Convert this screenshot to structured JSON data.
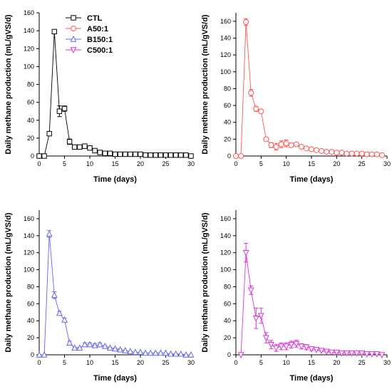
{
  "chart_data": [
    {
      "type": "line",
      "xlabel": "Time (days)",
      "ylabel": "Daily methane production (mL/gVS/d)",
      "xlim": [
        0,
        30
      ],
      "ylim": [
        0,
        160
      ],
      "xticks": [
        0,
        5,
        10,
        15,
        20,
        25,
        30
      ],
      "yticks": [
        0,
        20,
        40,
        60,
        80,
        100,
        120,
        140,
        160
      ],
      "grid": false,
      "legend": "top-left",
      "series": [
        {
          "name": "CTL",
          "color": "#000000",
          "marker": "square",
          "x": [
            0,
            1,
            2,
            3,
            4,
            5,
            6,
            7,
            8,
            9,
            10,
            11,
            12,
            13,
            14,
            15,
            16,
            17,
            18,
            19,
            20,
            21,
            22,
            23,
            24,
            25,
            26,
            27,
            28,
            29,
            30
          ],
          "y": [
            0,
            0,
            25,
            139,
            50,
            53,
            16,
            10,
            10,
            11,
            9,
            6,
            4,
            3,
            3,
            2,
            2,
            2,
            2,
            2,
            2,
            1,
            1,
            1,
            1,
            1,
            1,
            1,
            1,
            1,
            0
          ],
          "err": [
            0,
            0,
            2,
            2,
            6,
            3,
            3,
            1,
            1,
            2,
            1,
            1,
            1,
            1,
            1,
            1,
            0,
            0,
            0,
            0,
            0,
            0,
            0,
            0,
            0,
            0,
            0,
            0,
            0,
            0,
            0
          ]
        }
      ]
    },
    {
      "type": "line",
      "xlabel": "Time (days)",
      "ylabel": "Daily methane production (mL/gVS/d)",
      "xlim": [
        0,
        30
      ],
      "ylim": [
        0,
        170
      ],
      "xticks": [
        0,
        5,
        10,
        15,
        20,
        25,
        30
      ],
      "yticks": [
        0,
        20,
        40,
        60,
        80,
        100,
        120,
        140,
        160
      ],
      "grid": false,
      "legend": "top-left",
      "series": [
        {
          "name": "A50:1",
          "color": "#ff5555",
          "marker": "circle",
          "x": [
            0,
            1,
            2,
            3,
            4,
            5,
            6,
            7,
            8,
            9,
            10,
            11,
            12,
            13,
            14,
            15,
            16,
            17,
            18,
            19,
            20,
            21,
            22,
            23,
            24,
            25,
            26,
            27,
            28,
            29
          ],
          "y": [
            0,
            0,
            159,
            75,
            56,
            53,
            20,
            13,
            11,
            14,
            15,
            13,
            14,
            11,
            9,
            8,
            7,
            6,
            5,
            5,
            4,
            4,
            3,
            3,
            3,
            3,
            2,
            2,
            2,
            1
          ],
          "err": [
            0,
            0,
            4,
            4,
            3,
            2,
            2,
            3,
            4,
            4,
            4,
            2,
            2,
            1,
            1,
            1,
            1,
            0,
            0,
            0,
            0,
            0,
            0,
            0,
            0,
            0,
            0,
            0,
            0,
            0
          ]
        }
      ]
    },
    {
      "type": "line",
      "xlabel": "Time (days)",
      "ylabel": "Daily methane production (mL/gVS/d)",
      "xlim": [
        0,
        30
      ],
      "ylim": [
        0,
        170
      ],
      "xticks": [
        0,
        5,
        10,
        15,
        20,
        25,
        30
      ],
      "yticks": [
        0,
        20,
        40,
        60,
        80,
        100,
        120,
        140,
        160
      ],
      "grid": false,
      "legend": "top-left",
      "series": [
        {
          "name": "B150:1",
          "color": "#6666ee",
          "marker": "triangle-up",
          "x": [
            0,
            1,
            2,
            3,
            4,
            5,
            6,
            7,
            8,
            9,
            10,
            11,
            12,
            13,
            14,
            15,
            16,
            17,
            18,
            19,
            20,
            21,
            22,
            23,
            24,
            25,
            26,
            27,
            28,
            29,
            30
          ],
          "y": [
            0,
            0,
            142,
            70,
            49,
            41,
            14,
            8,
            8,
            12,
            12,
            11,
            12,
            10,
            8,
            7,
            6,
            5,
            4,
            3,
            3,
            2,
            2,
            2,
            2,
            2,
            1,
            1,
            1,
            0,
            0
          ],
          "err": [
            0,
            0,
            4,
            4,
            2,
            2,
            2,
            1,
            1,
            2,
            2,
            2,
            2,
            1,
            1,
            1,
            1,
            0,
            0,
            0,
            0,
            0,
            0,
            0,
            0,
            0,
            0,
            0,
            0,
            0,
            0
          ]
        }
      ]
    },
    {
      "type": "line",
      "xlabel": "Time (days)",
      "ylabel": "Daily methane production (mL/gVS/d)",
      "xlim": [
        0,
        30
      ],
      "ylim": [
        0,
        170
      ],
      "xticks": [
        0,
        5,
        10,
        15,
        20,
        25,
        30
      ],
      "yticks": [
        0,
        20,
        40,
        60,
        80,
        100,
        120,
        140,
        160
      ],
      "grid": false,
      "legend": "top-left",
      "series": [
        {
          "name": "C500:1",
          "color": "#dd33dd",
          "marker": "triangle-down",
          "x": [
            1,
            2,
            3,
            4,
            5,
            6,
            7,
            8,
            9,
            10,
            11,
            12,
            13,
            14,
            15,
            16,
            17,
            18,
            19,
            20,
            21,
            22,
            23,
            24,
            25,
            26,
            27,
            28,
            29
          ],
          "y": [
            0,
            120,
            76,
            43,
            46,
            20,
            12,
            8,
            10,
            10,
            12,
            13,
            10,
            9,
            7,
            6,
            5,
            4,
            3,
            3,
            2,
            2,
            2,
            2,
            2,
            1,
            1,
            1,
            0
          ],
          "err": [
            0,
            11,
            5,
            12,
            9,
            6,
            5,
            4,
            4,
            4,
            4,
            4,
            3,
            3,
            2,
            1,
            1,
            1,
            1,
            1,
            0,
            0,
            0,
            0,
            0,
            0,
            0,
            0,
            0
          ]
        }
      ]
    }
  ]
}
